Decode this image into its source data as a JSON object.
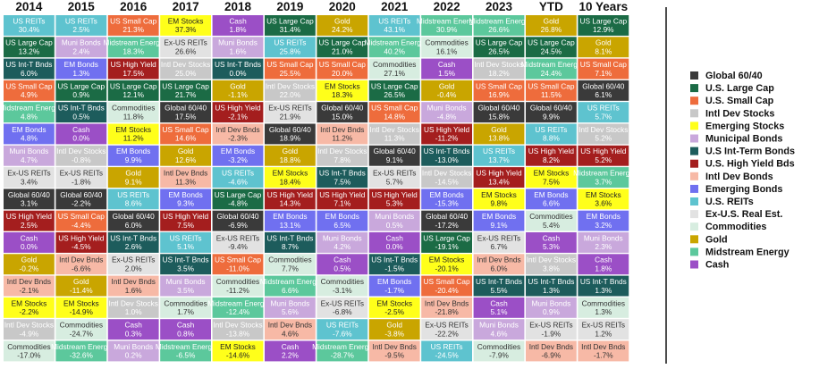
{
  "chart_data": {
    "type": "table",
    "title": "",
    "columns": [
      "2014",
      "2015",
      "2016",
      "2017",
      "2018",
      "2019",
      "2020",
      "2021",
      "2022",
      "2023",
      "YTD",
      "10 Years"
    ],
    "legend": [
      {
        "name": "Global 60/40",
        "color": "#3a3a3a"
      },
      {
        "name": "U.S. Large Cap",
        "color": "#1b6b45"
      },
      {
        "name": "U.S. Small Cap",
        "color": "#ee6c3c"
      },
      {
        "name": "Intl Dev Stocks",
        "color": "#c8c8c8"
      },
      {
        "name": "Emerging Stocks",
        "color": "#ffff1a"
      },
      {
        "name": "Municipal Bonds",
        "color": "#c9a8dc"
      },
      {
        "name": "U.S Int-Term Bonds",
        "color": "#1d5c5c"
      },
      {
        "name": "U.S. High Yield Bds",
        "color": "#a41e1e"
      },
      {
        "name": "Intl Dev Bonds",
        "color": "#f7b9a6"
      },
      {
        "name": "Emerging Bonds",
        "color": "#7070f0"
      },
      {
        "name": "U.S. REITs",
        "color": "#5ec3cf"
      },
      {
        "name": "Ex-U.S. Real Est.",
        "color": "#e2e2e2"
      },
      {
        "name": "Commodities",
        "color": "#d7ede0"
      },
      {
        "name": "Gold",
        "color": "#c9a500"
      },
      {
        "name": "Midstream Energy",
        "color": "#5cc89c"
      },
      {
        "name": "Cash",
        "color": "#9b4fc6"
      }
    ],
    "styles": {
      "Global 60/40": {
        "bg": "#3a3a3a",
        "fg": "#ffffff"
      },
      "US Large Cap": {
        "bg": "#1b6b45",
        "fg": "#ffffff"
      },
      "US Small Cap": {
        "bg": "#ee6c3c",
        "fg": "#ffffff"
      },
      "Intl Dev Stocks": {
        "bg": "#c8c8c8",
        "fg": "#ffffff"
      },
      "EM Stocks": {
        "bg": "#ffff1a",
        "fg": "#222222"
      },
      "Muni Bonds": {
        "bg": "#c9a8dc",
        "fg": "#ffffff"
      },
      "US Int-T Bnds": {
        "bg": "#1d5c5c",
        "fg": "#ffffff"
      },
      "US High Yield": {
        "bg": "#a41e1e",
        "fg": "#ffffff"
      },
      "Intl Dev Bnds": {
        "bg": "#f7b9a6",
        "fg": "#333333"
      },
      "EM Bonds": {
        "bg": "#7070f0",
        "fg": "#ffffff"
      },
      "US REITs": {
        "bg": "#5ec3cf",
        "fg": "#ffffff"
      },
      "Ex-US REITs": {
        "bg": "#e2e2e2",
        "fg": "#333333"
      },
      "Commodities": {
        "bg": "#d7ede0",
        "fg": "#333333"
      },
      "Gold": {
        "bg": "#c9a500",
        "fg": "#ffffff"
      },
      "Midstream Energy": {
        "bg": "#5cc89c",
        "fg": "#ffffff"
      },
      "Cash": {
        "bg": "#9b4fc6",
        "fg": "#ffffff"
      }
    },
    "cells": [
      [
        {
          "name": "US REITs",
          "value": "30.4%"
        },
        {
          "name": "US Large Cap",
          "value": "13.2%"
        },
        {
          "name": "US Int-T Bnds",
          "value": "6.0%"
        },
        {
          "name": "US Small Cap",
          "value": "4.9%"
        },
        {
          "name": "Midstream Energy",
          "value": "4.8%"
        },
        {
          "name": "EM Bonds",
          "value": "4.8%"
        },
        {
          "name": "Muni Bonds",
          "value": "4.7%"
        },
        {
          "name": "Ex-US REITs",
          "value": "3.4%"
        },
        {
          "name": "Global 60/40",
          "value": "3.1%"
        },
        {
          "name": "US High Yield",
          "value": "2.5%"
        },
        {
          "name": "Cash",
          "value": "0.0%"
        },
        {
          "name": "Gold",
          "value": "-0.2%"
        },
        {
          "name": "Intl Dev Bnds",
          "value": "-2.1%"
        },
        {
          "name": "EM Stocks",
          "value": "-2.2%"
        },
        {
          "name": "Intl Dev Stocks",
          "value": "-4.9%"
        },
        {
          "name": "Commodities",
          "value": "-17.0%"
        }
      ],
      [
        {
          "name": "US REITs",
          "value": "2.5%"
        },
        {
          "name": "Muni Bonds",
          "value": "2.4%"
        },
        {
          "name": "EM Bonds",
          "value": "1.3%"
        },
        {
          "name": "US Large Cap",
          "value": "0.9%"
        },
        {
          "name": "US Int-T Bnds",
          "value": "0.5%"
        },
        {
          "name": "Cash",
          "value": "0.0%"
        },
        {
          "name": "Intl Dev Stocks",
          "value": "-0.8%"
        },
        {
          "name": "Ex-US REITs",
          "value": "-1.8%"
        },
        {
          "name": "Global 60/40",
          "value": "-2.2%"
        },
        {
          "name": "US Small Cap",
          "value": "-4.4%"
        },
        {
          "name": "US High Yield",
          "value": "-4.5%"
        },
        {
          "name": "Intl Dev Bnds",
          "value": "-6.6%"
        },
        {
          "name": "Gold",
          "value": "-11.4%"
        },
        {
          "name": "EM Stocks",
          "value": "-14.9%"
        },
        {
          "name": "Commodities",
          "value": "-24.7%"
        },
        {
          "name": "Midstream Energy",
          "value": "-32.6%"
        }
      ],
      [
        {
          "name": "US Small Cap",
          "value": "21.3%"
        },
        {
          "name": "Midstream Energy",
          "value": "18.3%"
        },
        {
          "name": "US High Yield",
          "value": "17.5%"
        },
        {
          "name": "US Large Cap",
          "value": "12.1%"
        },
        {
          "name": "Commodities",
          "value": "11.8%"
        },
        {
          "name": "EM Stocks",
          "value": "11.2%"
        },
        {
          "name": "EM Bonds",
          "value": "9.9%"
        },
        {
          "name": "Gold",
          "value": "9.1%"
        },
        {
          "name": "US REITs",
          "value": "8.6%"
        },
        {
          "name": "Global 60/40",
          "value": "6.0%"
        },
        {
          "name": "US Int-T Bnds",
          "value": "2.6%"
        },
        {
          "name": "Ex-US REITs",
          "value": "2.0%"
        },
        {
          "name": "Intl Dev Bnds",
          "value": "1.6%"
        },
        {
          "name": "Intl Dev Stocks",
          "value": "1.0%"
        },
        {
          "name": "Cash",
          "value": "0.3%"
        },
        {
          "name": "Muni Bonds",
          "value": "0.2%"
        }
      ],
      [
        {
          "name": "EM Stocks",
          "value": "37.3%"
        },
        {
          "name": "Ex-US REITs",
          "value": "26.6%"
        },
        {
          "name": "Intl Dev Stocks",
          "value": "25.0%"
        },
        {
          "name": "US Large Cap",
          "value": "21.7%"
        },
        {
          "name": "Global 60/40",
          "value": "17.5%"
        },
        {
          "name": "US Small Cap",
          "value": "14.6%"
        },
        {
          "name": "Gold",
          "value": "12.6%"
        },
        {
          "name": "Intl Dev Bnds",
          "value": "11.3%"
        },
        {
          "name": "EM Bonds",
          "value": "9.3%"
        },
        {
          "name": "US High Yield",
          "value": "7.5%"
        },
        {
          "name": "US REITs",
          "value": "5.1%"
        },
        {
          "name": "US Int-T Bnds",
          "value": "3.5%"
        },
        {
          "name": "Muni Bonds",
          "value": "3.5%"
        },
        {
          "name": "Commodities",
          "value": "1.7%"
        },
        {
          "name": "Cash",
          "value": "0.8%"
        },
        {
          "name": "Midstream Energy",
          "value": "-6.5%"
        }
      ],
      [
        {
          "name": "Cash",
          "value": "1.8%"
        },
        {
          "name": "Muni Bonds",
          "value": "1.6%"
        },
        {
          "name": "US Int-T Bnds",
          "value": "0.0%"
        },
        {
          "name": "Gold",
          "value": "-1.1%"
        },
        {
          "name": "US High Yield",
          "value": "-2.1%"
        },
        {
          "name": "Intl Dev Bnds",
          "value": "-2.3%"
        },
        {
          "name": "EM Bonds",
          "value": "-3.2%"
        },
        {
          "name": "US REITs",
          "value": "-4.6%"
        },
        {
          "name": "US Large Cap",
          "value": "-4.8%"
        },
        {
          "name": "Global 60/40",
          "value": "-6.9%"
        },
        {
          "name": "Ex-US REITs",
          "value": "-9.4%"
        },
        {
          "name": "US Small Cap",
          "value": "-11.0%"
        },
        {
          "name": "Commodities",
          "value": "-11.2%"
        },
        {
          "name": "Midstream Energy",
          "value": "-12.4%"
        },
        {
          "name": "Intl Dev Stocks",
          "value": "-13.8%"
        },
        {
          "name": "EM Stocks",
          "value": "-14.6%"
        }
      ],
      [
        {
          "name": "US Large Cap",
          "value": "31.4%"
        },
        {
          "name": "US REITs",
          "value": "25.8%"
        },
        {
          "name": "US Small Cap",
          "value": "25.5%"
        },
        {
          "name": "Intl Dev Stocks",
          "value": "22.0%"
        },
        {
          "name": "Ex-US REITs",
          "value": "21.9%"
        },
        {
          "name": "Global 60/40",
          "value": "18.9%"
        },
        {
          "name": "Gold",
          "value": "18.8%"
        },
        {
          "name": "EM Stocks",
          "value": "18.4%"
        },
        {
          "name": "US High Yield",
          "value": "14.3%"
        },
        {
          "name": "EM Bonds",
          "value": "13.1%"
        },
        {
          "name": "US Int-T Bnds",
          "value": "8.7%"
        },
        {
          "name": "Commodities",
          "value": "7.7%"
        },
        {
          "name": "Midstream Energy",
          "value": "6.6%"
        },
        {
          "name": "Muni Bonds",
          "value": "5.6%"
        },
        {
          "name": "Intl Dev Bnds",
          "value": "4.6%"
        },
        {
          "name": "Cash",
          "value": "2.2%"
        }
      ],
      [
        {
          "name": "Gold",
          "value": "24.2%"
        },
        {
          "name": "US Large Cap",
          "value": "21.0%"
        },
        {
          "name": "US Small Cap",
          "value": "20.0%"
        },
        {
          "name": "EM Stocks",
          "value": "18.3%"
        },
        {
          "name": "Global 60/40",
          "value": "15.0%"
        },
        {
          "name": "Intl Dev Bnds",
          "value": "11.2%"
        },
        {
          "name": "Intl Dev Stocks",
          "value": "7.8%"
        },
        {
          "name": "US Int-T Bnds",
          "value": "7.5%"
        },
        {
          "name": "US High Yield",
          "value": "7.1%"
        },
        {
          "name": "EM Bonds",
          "value": "6.5%"
        },
        {
          "name": "Muni Bonds",
          "value": "4.2%"
        },
        {
          "name": "Cash",
          "value": "0.5%"
        },
        {
          "name": "Commodities",
          "value": "-3.1%"
        },
        {
          "name": "Ex-US REITs",
          "value": "-6.8%"
        },
        {
          "name": "US REITs",
          "value": "-7.6%"
        },
        {
          "name": "Midstream Energy",
          "value": "-28.7%"
        }
      ],
      [
        {
          "name": "US REITs",
          "value": "43.1%"
        },
        {
          "name": "Midstream Energy",
          "value": "40.2%"
        },
        {
          "name": "Commodities",
          "value": "27.1%"
        },
        {
          "name": "US Large Cap",
          "value": "26.5%"
        },
        {
          "name": "US Small Cap",
          "value": "14.8%"
        },
        {
          "name": "Intl Dev Stocks",
          "value": "11.3%"
        },
        {
          "name": "Global 60/40",
          "value": "9.1%"
        },
        {
          "name": "Ex-US REITs",
          "value": "5.7%"
        },
        {
          "name": "US High Yield",
          "value": "5.3%"
        },
        {
          "name": "Muni Bonds",
          "value": "0.5%"
        },
        {
          "name": "Cash",
          "value": "0.0%"
        },
        {
          "name": "US Int-T Bnds",
          "value": "-1.5%"
        },
        {
          "name": "EM Bonds",
          "value": "-1.7%"
        },
        {
          "name": "EM Stocks",
          "value": "-2.5%"
        },
        {
          "name": "Gold",
          "value": "-3.8%"
        },
        {
          "name": "Intl Dev Bnds",
          "value": "-9.5%"
        }
      ],
      [
        {
          "name": "Midstream Energy",
          "value": "30.9%"
        },
        {
          "name": "Commodities",
          "value": "16.1%"
        },
        {
          "name": "Cash",
          "value": "1.5%"
        },
        {
          "name": "Gold",
          "value": "-0.4%"
        },
        {
          "name": "Muni Bonds",
          "value": "-4.8%"
        },
        {
          "name": "US High Yield",
          "value": "-11.2%"
        },
        {
          "name": "US Int-T Bnds",
          "value": "-13.0%"
        },
        {
          "name": "Intl Dev Stocks",
          "value": "-14.5%"
        },
        {
          "name": "EM Bonds",
          "value": "-15.3%"
        },
        {
          "name": "Global 60/40",
          "value": "-17.2%"
        },
        {
          "name": "US Large Cap",
          "value": "-19.1%"
        },
        {
          "name": "EM Stocks",
          "value": "-20.1%"
        },
        {
          "name": "US Small Cap",
          "value": "-20.4%"
        },
        {
          "name": "Intl Dev Bnds",
          "value": "-21.8%"
        },
        {
          "name": "Ex-US REITs",
          "value": "-22.2%"
        },
        {
          "name": "US REITs",
          "value": "-24.5%"
        }
      ],
      [
        {
          "name": "Midstream Energy",
          "value": "26.6%"
        },
        {
          "name": "US Large Cap",
          "value": "26.5%"
        },
        {
          "name": "Intl Dev Stocks",
          "value": "18.2%"
        },
        {
          "name": "US Small Cap",
          "value": "16.9%"
        },
        {
          "name": "Global 60/40",
          "value": "15.8%"
        },
        {
          "name": "Gold",
          "value": "13.8%"
        },
        {
          "name": "US REITs",
          "value": "13.7%"
        },
        {
          "name": "US High Yield",
          "value": "13.4%"
        },
        {
          "name": "EM Stocks",
          "value": "9.8%"
        },
        {
          "name": "EM Bonds",
          "value": "9.1%"
        },
        {
          "name": "Ex-US REITs",
          "value": "6.7%"
        },
        {
          "name": "Intl Dev Bnds",
          "value": "6.0%"
        },
        {
          "name": "US Int-T Bnds",
          "value": "5.5%"
        },
        {
          "name": "Cash",
          "value": "5.1%"
        },
        {
          "name": "Muni Bonds",
          "value": "4.6%"
        },
        {
          "name": "Commodities",
          "value": "-7.9%"
        }
      ],
      [
        {
          "name": "Gold",
          "value": "26.8%"
        },
        {
          "name": "US Large Cap",
          "value": "24.5%"
        },
        {
          "name": "Midstream Energy",
          "value": "24.4%"
        },
        {
          "name": "US Small Cap",
          "value": "11.5%"
        },
        {
          "name": "Global 60/40",
          "value": "9.9%"
        },
        {
          "name": "US REITs",
          "value": "8.8%"
        },
        {
          "name": "US High Yield",
          "value": "8.2%"
        },
        {
          "name": "EM Stocks",
          "value": "7.5%"
        },
        {
          "name": "EM Bonds",
          "value": "6.6%"
        },
        {
          "name": "Commodities",
          "value": "5.4%"
        },
        {
          "name": "Cash",
          "value": "5.3%"
        },
        {
          "name": "Intl Dev Stocks",
          "value": "3.8%"
        },
        {
          "name": "US Int-T Bnds",
          "value": "1.3%"
        },
        {
          "name": "Muni Bonds",
          "value": "0.9%"
        },
        {
          "name": "Ex-US REITs",
          "value": "-1.9%"
        },
        {
          "name": "Intl Dev Bnds",
          "value": "-6.9%"
        }
      ],
      [
        {
          "name": "US Large Cap",
          "value": "12.9%"
        },
        {
          "name": "Gold",
          "value": "8.1%"
        },
        {
          "name": "US Small Cap",
          "value": "7.1%"
        },
        {
          "name": "Global 60/40",
          "value": "6.1%"
        },
        {
          "name": "US REITs",
          "value": "5.7%"
        },
        {
          "name": "Intl Dev Stocks",
          "value": "5.2%"
        },
        {
          "name": "US High Yield",
          "value": "5.2%"
        },
        {
          "name": "Midstream Energy",
          "value": "3.7%"
        },
        {
          "name": "EM Stocks",
          "value": "3.6%"
        },
        {
          "name": "EM Bonds",
          "value": "3.2%"
        },
        {
          "name": "Muni Bonds",
          "value": "2.3%"
        },
        {
          "name": "Cash",
          "value": "1.8%"
        },
        {
          "name": "US Int-T Bnds",
          "value": "1.3%"
        },
        {
          "name": "Commodities",
          "value": "1.3%"
        },
        {
          "name": "Ex-US REITs",
          "value": "1.2%"
        },
        {
          "name": "Intl Dev Bnds",
          "value": "-1.7%"
        }
      ]
    ]
  }
}
